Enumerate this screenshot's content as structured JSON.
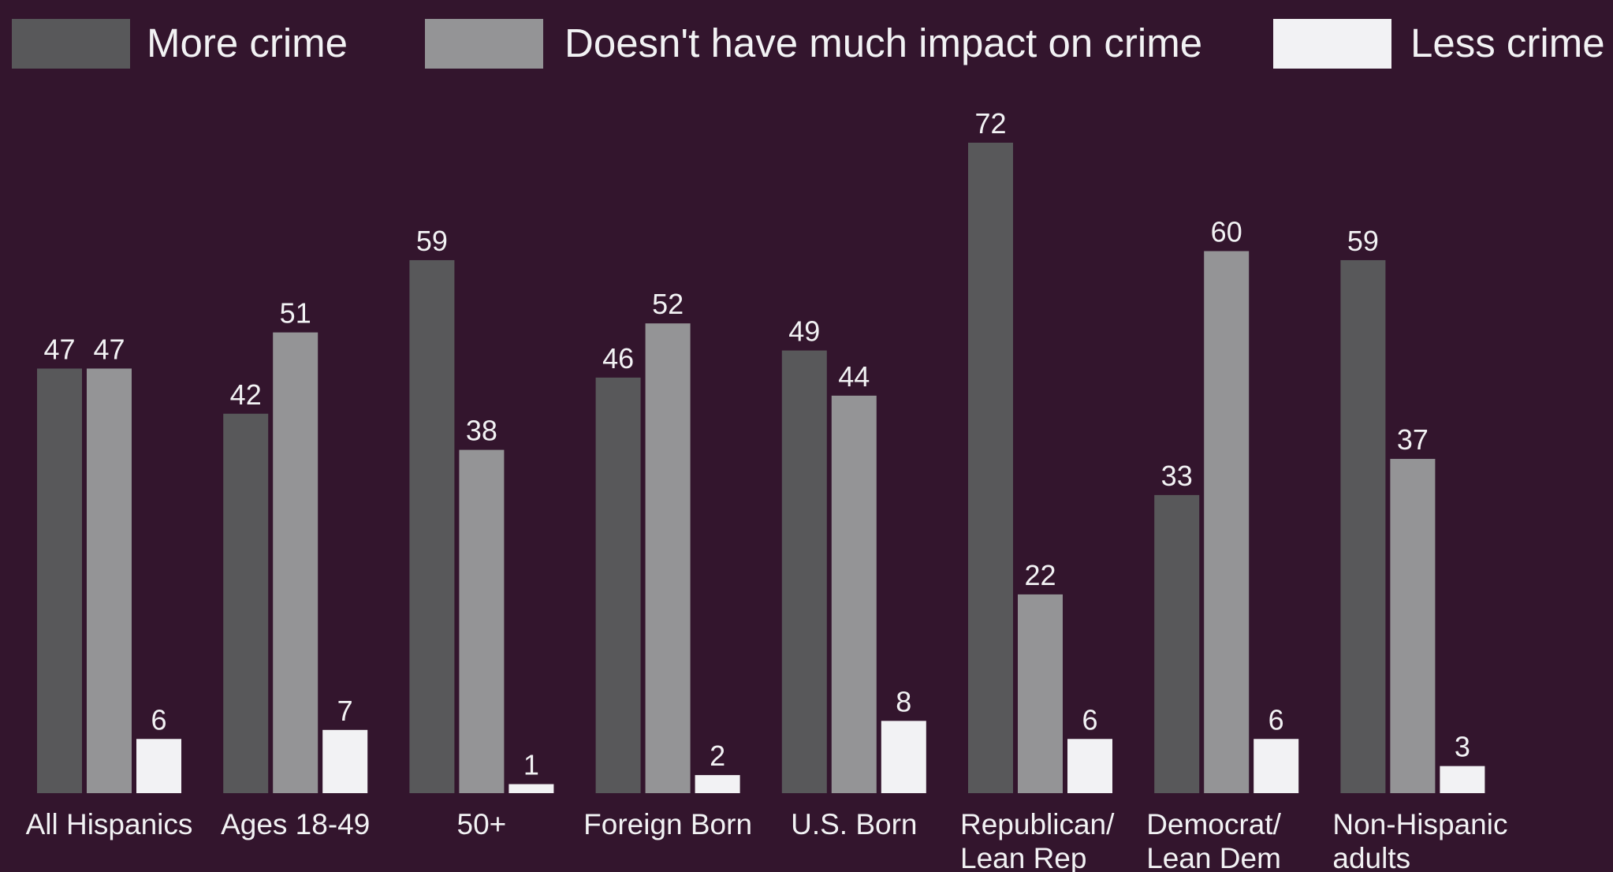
{
  "chart_data": {
    "type": "bar",
    "categories": [
      [
        "All Hispanics"
      ],
      [
        "Ages 18-49"
      ],
      [
        "50+"
      ],
      [
        "Foreign Born"
      ],
      [
        "U.S. Born"
      ],
      [
        "Republican/",
        "Lean Rep"
      ],
      [
        "Democrat/",
        "Lean Dem"
      ],
      [
        "Non-Hispanic",
        "adults"
      ]
    ],
    "series": [
      {
        "name": "More crime",
        "color": "#58585a",
        "values": [
          47,
          42,
          59,
          46,
          49,
          72,
          33,
          59
        ]
      },
      {
        "name": "Doesn't have much impact on crime",
        "color": "#949496",
        "values": [
          47,
          51,
          38,
          52,
          44,
          22,
          60,
          37
        ]
      },
      {
        "name": "Less crime",
        "color": "#f2f2f4",
        "values": [
          6,
          7,
          1,
          2,
          8,
          6,
          6,
          3
        ]
      }
    ],
    "ylim": [
      0,
      72
    ],
    "grid": false,
    "legend_position": "top",
    "data_labels": true
  },
  "colors": {
    "background": "#33152d",
    "text": "#f2f2f4"
  }
}
